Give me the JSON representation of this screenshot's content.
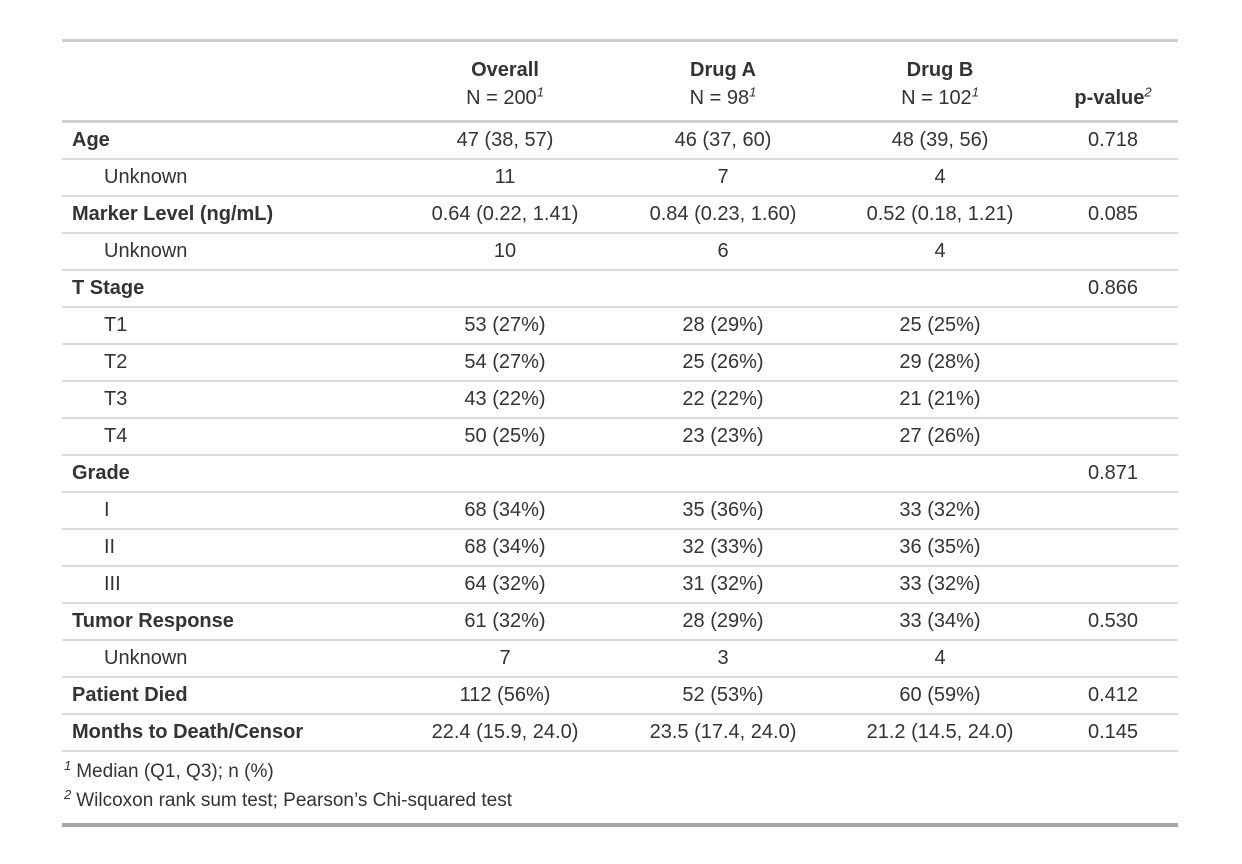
{
  "chart_data": {
    "type": "table",
    "columns": [
      {
        "label": "",
        "sublabel": "",
        "footnote_ref": ""
      },
      {
        "label": "Overall",
        "sublabel": "N = 200",
        "footnote_ref": "1"
      },
      {
        "label": "Drug A",
        "sublabel": "N = 98",
        "footnote_ref": "1"
      },
      {
        "label": "Drug B",
        "sublabel": "N = 102",
        "footnote_ref": "1"
      },
      {
        "label": "p-value",
        "sublabel": "",
        "footnote_ref": "2"
      }
    ],
    "rows": [
      {
        "label": "Age",
        "bold": true,
        "indent": false,
        "overall": "47 (38, 57)",
        "drug_a": "46 (37, 60)",
        "drug_b": "48 (39, 56)",
        "p_value": "0.718"
      },
      {
        "label": "Unknown",
        "bold": false,
        "indent": true,
        "overall": "11",
        "drug_a": "7",
        "drug_b": "4",
        "p_value": ""
      },
      {
        "label": "Marker Level (ng/mL)",
        "bold": true,
        "indent": false,
        "overall": "0.64 (0.22, 1.41)",
        "drug_a": "0.84 (0.23, 1.60)",
        "drug_b": "0.52 (0.18, 1.21)",
        "p_value": "0.085"
      },
      {
        "label": "Unknown",
        "bold": false,
        "indent": true,
        "overall": "10",
        "drug_a": "6",
        "drug_b": "4",
        "p_value": ""
      },
      {
        "label": "T Stage",
        "bold": true,
        "indent": false,
        "overall": "",
        "drug_a": "",
        "drug_b": "",
        "p_value": "0.866"
      },
      {
        "label": "T1",
        "bold": false,
        "indent": true,
        "overall": "53 (27%)",
        "drug_a": "28 (29%)",
        "drug_b": "25 (25%)",
        "p_value": ""
      },
      {
        "label": "T2",
        "bold": false,
        "indent": true,
        "overall": "54 (27%)",
        "drug_a": "25 (26%)",
        "drug_b": "29 (28%)",
        "p_value": ""
      },
      {
        "label": "T3",
        "bold": false,
        "indent": true,
        "overall": "43 (22%)",
        "drug_a": "22 (22%)",
        "drug_b": "21 (21%)",
        "p_value": ""
      },
      {
        "label": "T4",
        "bold": false,
        "indent": true,
        "overall": "50 (25%)",
        "drug_a": "23 (23%)",
        "drug_b": "27 (26%)",
        "p_value": ""
      },
      {
        "label": "Grade",
        "bold": true,
        "indent": false,
        "overall": "",
        "drug_a": "",
        "drug_b": "",
        "p_value": "0.871"
      },
      {
        "label": "I",
        "bold": false,
        "indent": true,
        "overall": "68 (34%)",
        "drug_a": "35 (36%)",
        "drug_b": "33 (32%)",
        "p_value": ""
      },
      {
        "label": "II",
        "bold": false,
        "indent": true,
        "overall": "68 (34%)",
        "drug_a": "32 (33%)",
        "drug_b": "36 (35%)",
        "p_value": ""
      },
      {
        "label": "III",
        "bold": false,
        "indent": true,
        "overall": "64 (32%)",
        "drug_a": "31 (32%)",
        "drug_b": "33 (32%)",
        "p_value": ""
      },
      {
        "label": "Tumor Response",
        "bold": true,
        "indent": false,
        "overall": "61 (32%)",
        "drug_a": "28 (29%)",
        "drug_b": "33 (34%)",
        "p_value": "0.530"
      },
      {
        "label": "Unknown",
        "bold": false,
        "indent": true,
        "overall": "7",
        "drug_a": "3",
        "drug_b": "4",
        "p_value": ""
      },
      {
        "label": "Patient Died",
        "bold": true,
        "indent": false,
        "overall": "112 (56%)",
        "drug_a": "52 (53%)",
        "drug_b": "60 (59%)",
        "p_value": "0.412"
      },
      {
        "label": "Months to Death/Censor",
        "bold": true,
        "indent": false,
        "overall": "22.4 (15.9, 24.0)",
        "drug_a": "23.5 (17.4, 24.0)",
        "drug_b": "21.2 (14.5, 24.0)",
        "p_value": "0.145"
      }
    ],
    "footnotes": [
      {
        "marker": "1",
        "text": "Median (Q1, Q3); n (%)"
      },
      {
        "marker": "2",
        "text": "Wilcoxon rank sum test; Pearson’s Chi-squared test"
      }
    ],
    "layout": {
      "text_color": "#333333",
      "divider_color": "#dbdbdb",
      "rule_color": "#cfcfcf",
      "bottom_rule_color": "#a6a6a6"
    }
  }
}
